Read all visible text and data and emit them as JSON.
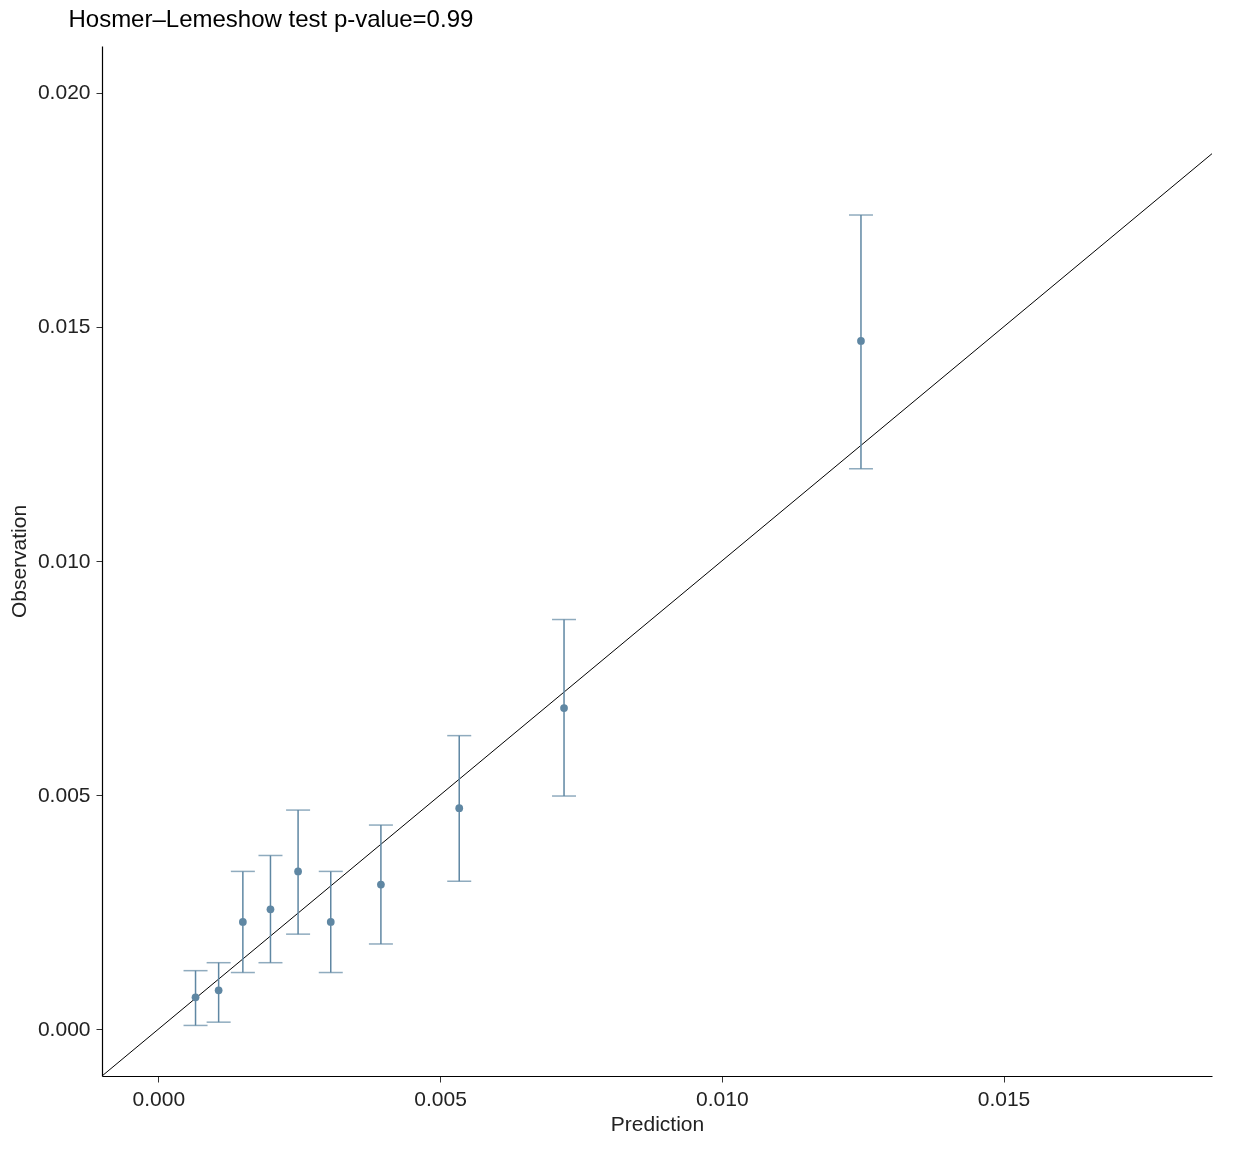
{
  "chart_data": {
    "type": "scatter",
    "title": "Hosmer–Lemeshow test p-value=0.99",
    "xlabel": "Prediction",
    "ylabel": "Observation",
    "xlim": [
      -0.001,
      0.0187
    ],
    "ylim": [
      -0.001,
      0.021
    ],
    "xticks": [
      {
        "value": 0,
        "label": "0.000"
      },
      {
        "value": 0.005,
        "label": "0.005"
      },
      {
        "value": 0.01,
        "label": "0.010"
      },
      {
        "value": 0.015,
        "label": "0.015"
      }
    ],
    "yticks": [
      {
        "value": 0,
        "label": "0.000"
      },
      {
        "value": 0.005,
        "label": "0.005"
      },
      {
        "value": 0.01,
        "label": "0.010"
      },
      {
        "value": 0.015,
        "label": "0.015"
      },
      {
        "value": 0.02,
        "label": "0.020"
      }
    ],
    "grid": false,
    "series": [
      {
        "type": "line",
        "color": "#000000",
        "x": [
          -0.001,
          0.0187
        ],
        "values": [
          -0.001,
          0.0187
        ]
      },
      {
        "marker": "circle",
        "color": "#5f87a3",
        "x": [
          0.00066,
          0.00107,
          0.0015,
          0.00199,
          0.00248,
          0.00306,
          0.00395,
          0.00534,
          0.0072,
          0.01247
        ],
        "values": [
          0.00068,
          0.00083,
          0.00229,
          0.00256,
          0.00337,
          0.00229,
          0.00309,
          0.00472,
          0.00686,
          0.0147
        ],
        "errors": [
          [
            8e-05,
            0.00125
          ],
          [
            0.00015,
            0.00142
          ],
          [
            0.00121,
            0.00337
          ],
          [
            0.00142,
            0.00371
          ],
          [
            0.00203,
            0.00468
          ],
          [
            0.00121,
            0.00337
          ],
          [
            0.00182,
            0.00436
          ],
          [
            0.00316,
            0.00627
          ],
          [
            0.00498,
            0.00875
          ],
          [
            0.01197,
            0.01739
          ]
        ]
      }
    ]
  }
}
